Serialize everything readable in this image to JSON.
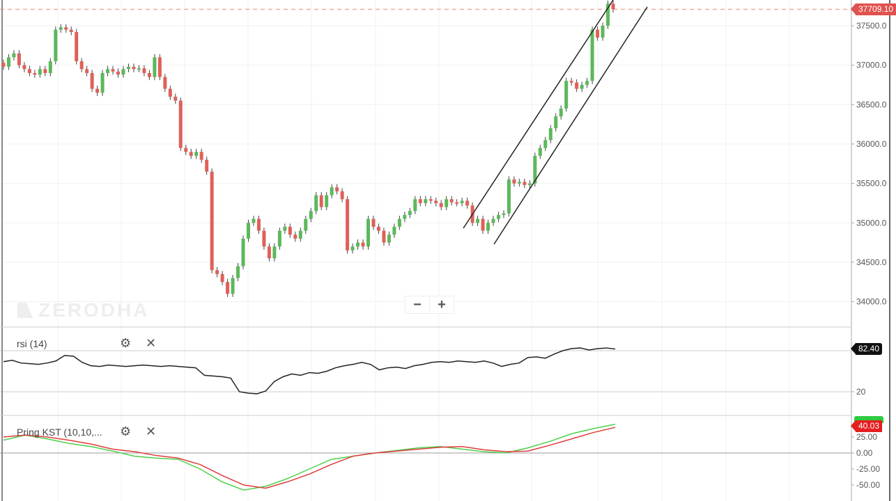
{
  "watermark": "ZERODHA",
  "zoom": {
    "minus": "−",
    "plus": "+"
  },
  "price_panel": {
    "last_price_tag": "37709.10",
    "tag_color": "#e0524f",
    "axis_ticks": [
      "37500.0",
      "37000.0",
      "36500.0",
      "36000.0",
      "35500.0",
      "35000.0",
      "34500.0",
      "34000.0"
    ]
  },
  "rsi_panel": {
    "title": "rsi (14)",
    "value_tag": "82.40",
    "tag_color": "#111111",
    "axis_ticks": [
      "20"
    ]
  },
  "kst_panel": {
    "title": "Pring KST (10,10,...",
    "value_tag": "40.03",
    "tag_color": "#e51f1f",
    "signal_tag_color": "#2ecc40",
    "axis_ticks": [
      "25.00",
      "0.00",
      "-25.00",
      "-50.00"
    ]
  },
  "icons": {
    "settings": "gear-icon",
    "close": "close-icon"
  },
  "colors": {
    "up": "#5cb85c",
    "down": "#e0605a",
    "kst": "#4cd04c",
    "kst_signal": "#e03b3b",
    "rsi": "#222222"
  },
  "chart_data": [
    {
      "type": "candlestick",
      "ylim": [
        33800,
        37800
      ],
      "yticks": [
        34000,
        34500,
        35000,
        35500,
        36000,
        36500,
        37000,
        37500
      ],
      "last_price": 37709.1,
      "close": [
        36980,
        37100,
        37150,
        37000,
        36950,
        36900,
        36880,
        36950,
        36900,
        37050,
        37450,
        37480,
        37450,
        37420,
        37050,
        36950,
        36900,
        36700,
        36650,
        36900,
        36950,
        36920,
        36880,
        36950,
        36980,
        36950,
        36960,
        36900,
        36850,
        37100,
        36850,
        36700,
        36600,
        36550,
        35950,
        35900,
        35850,
        35900,
        35800,
        35650,
        34400,
        34350,
        34250,
        34100,
        34300,
        34450,
        34800,
        35000,
        35050,
        34900,
        34700,
        34550,
        34700,
        34900,
        34950,
        34850,
        34800,
        34900,
        35050,
        35150,
        35350,
        35200,
        35350,
        35450,
        35400,
        35300,
        34650,
        34700,
        34750,
        34700,
        35050,
        34950,
        34900,
        34750,
        34850,
        34950,
        35050,
        35100,
        35150,
        35300,
        35250,
        35300,
        35280,
        35250,
        35200,
        35300,
        35260,
        35250,
        35280,
        35220,
        35000,
        35050,
        34900,
        35000,
        35050,
        35100,
        35120,
        35550,
        35500,
        35520,
        35480,
        35500,
        35850,
        35950,
        36050,
        36200,
        36350,
        36450,
        36800,
        36780,
        36700,
        36750,
        36800,
        37450,
        37350,
        37500,
        37780,
        37709
      ]
    },
    {
      "type": "line",
      "title": "rsi (14)",
      "levels": [
        80,
        20
      ],
      "values": [
        64,
        66,
        62,
        61,
        60,
        62,
        65,
        73,
        72,
        63,
        58,
        57,
        59,
        58,
        57,
        58,
        59,
        58,
        57,
        58,
        57,
        56,
        55,
        44,
        43,
        42,
        40,
        20,
        18,
        17,
        21,
        35,
        42,
        46,
        44,
        48,
        47,
        50,
        55,
        58,
        60,
        63,
        60,
        52,
        55,
        56,
        54,
        58,
        60,
        63,
        64,
        63,
        65,
        64,
        63,
        65,
        62,
        57,
        60,
        62,
        70,
        71,
        69,
        75,
        80,
        83,
        84,
        81,
        83,
        84,
        82.4
      ]
    },
    {
      "type": "line",
      "title": "Pring KST (10,10,...",
      "series": [
        {
          "values": [
            20,
            28,
            22,
            15,
            10,
            3,
            -5,
            -8,
            -10,
            -25,
            -45,
            -58,
            -52,
            -40,
            -25,
            -10,
            -5,
            0,
            4,
            8,
            10,
            6,
            2,
            0,
            8,
            18,
            30,
            38,
            45
          ]
        },
        {
          "values": [
            25,
            28,
            25,
            20,
            14,
            6,
            2,
            -4,
            -8,
            -18,
            -35,
            -50,
            -55,
            -45,
            -33,
            -18,
            -5,
            0,
            3,
            6,
            9,
            10,
            5,
            2,
            3,
            12,
            22,
            32,
            40.03
          ]
        }
      ]
    }
  ]
}
